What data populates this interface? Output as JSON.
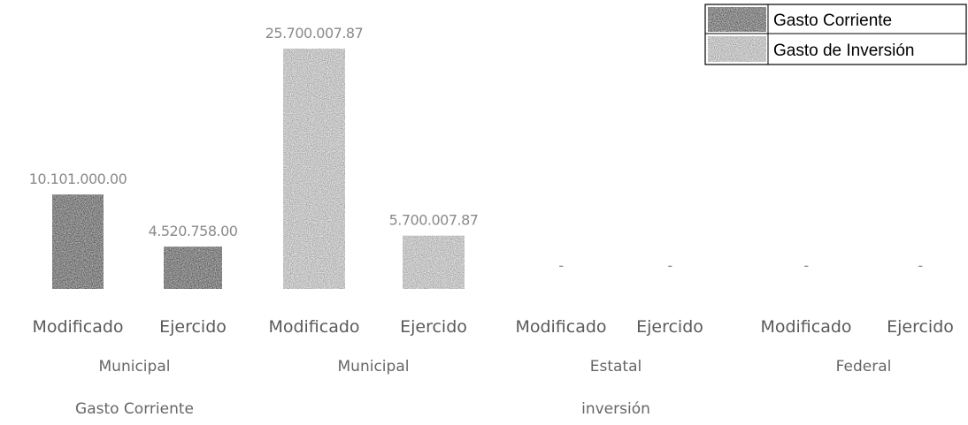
{
  "chart_data": {
    "type": "bar",
    "categories": [
      "Modificado",
      "Ejercido",
      "Modificado",
      "Ejercido",
      "Modificado",
      "Ejercido",
      "Modificado",
      "Ejercido"
    ],
    "groups_level1": [
      "Municipal",
      "Municipal",
      "Estatal",
      "Federal"
    ],
    "groups_level2": [
      "Gasto Corriente",
      "inversión"
    ],
    "series": [
      {
        "name": "Gasto Corriente",
        "color": "#6e6e6e",
        "values": [
          10101000.0,
          4520758.0,
          null,
          null,
          null,
          null,
          null,
          null
        ]
      },
      {
        "name": "Gasto de Inversión",
        "color": "#c2c2c2",
        "values": [
          null,
          null,
          25700007.87,
          5700007.87,
          0,
          0,
          0,
          0
        ]
      }
    ],
    "data_labels": [
      "10.101.000.00",
      "4.520.758.00",
      "25.700.007.87",
      "5.700.007.87",
      "-",
      "-",
      "-",
      "-"
    ],
    "ylim": [
      0,
      25700007.87
    ],
    "legend_position": "top-right",
    "grid": false,
    "title": "",
    "xlabel": "",
    "ylabel": ""
  }
}
